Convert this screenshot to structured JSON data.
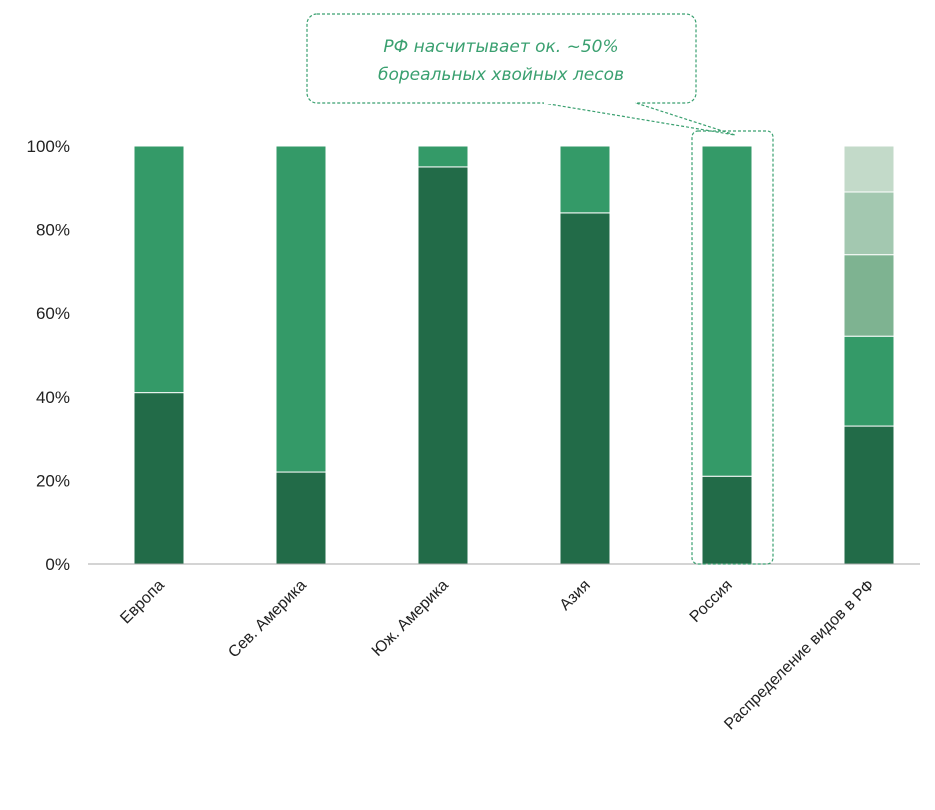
{
  "colors": {
    "dark": "#226b48",
    "mid": "#349a68",
    "light1": "#7eb391",
    "light2": "#a3c8b0",
    "light3": "#c3dac9",
    "axis": "#aaaaaa",
    "callout_border": "#3aa070",
    "callout_text": "#3aa070"
  },
  "callout": {
    "line1": "РФ насчитывает ок. ~50%",
    "line2": "бореальных хвойных лесов"
  },
  "chart_data": {
    "type": "bar",
    "stacked": true,
    "percent": true,
    "ylim": [
      0,
      100
    ],
    "yticks": [
      "0%",
      "20%",
      "40%",
      "60%",
      "80%",
      "100%"
    ],
    "categories": [
      "Европа",
      "Сев. Америка",
      "Юж. Америка",
      "Азия",
      "Россия",
      "Распределение видов в РФ"
    ],
    "series": [
      {
        "color_key": "dark",
        "values": [
          41,
          22,
          95,
          84,
          21,
          33
        ]
      },
      {
        "color_key": "mid",
        "values": [
          59,
          78,
          5,
          16,
          79,
          21.5
        ]
      },
      {
        "color_key": "light1",
        "values": [
          0,
          0,
          0,
          0,
          0,
          19.5
        ]
      },
      {
        "color_key": "light2",
        "values": [
          0,
          0,
          0,
          0,
          0,
          15
        ]
      },
      {
        "color_key": "light3",
        "values": [
          0,
          0,
          0,
          0,
          0,
          11
        ]
      }
    ],
    "highlight_category": "Россия",
    "grid": false,
    "legend": "none"
  }
}
